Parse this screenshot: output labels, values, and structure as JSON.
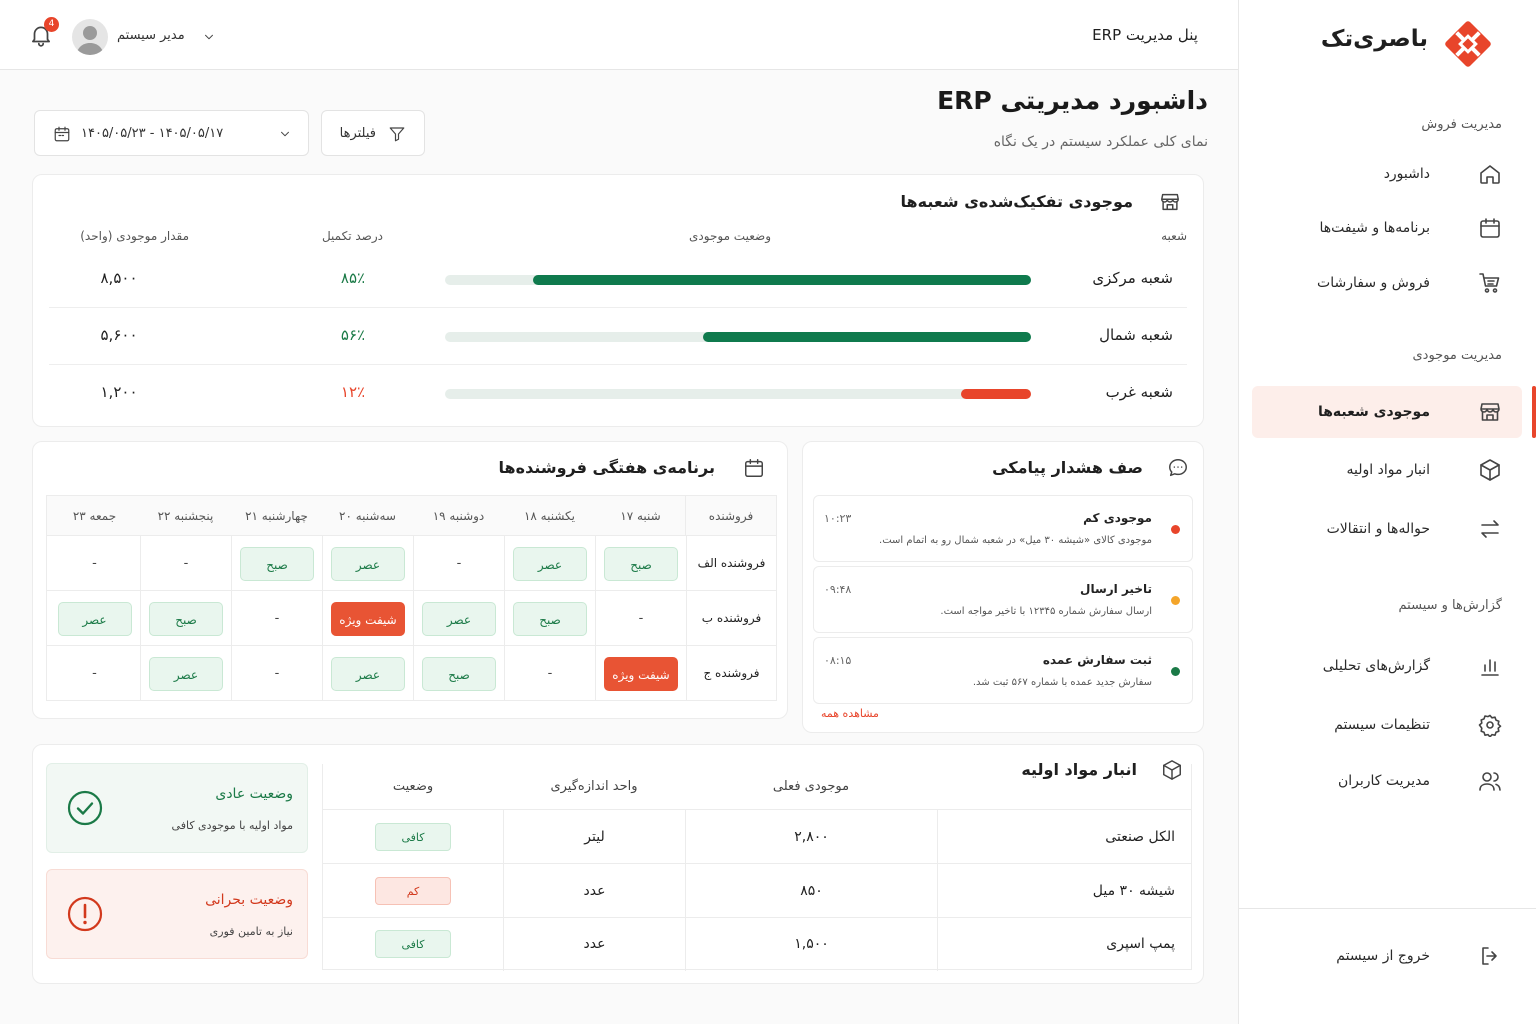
{
  "colors": {
    "accent": "#e8452b",
    "success": "#1b7a47",
    "bar_green": "#0f7a4d",
    "bar_red": "#e8452b",
    "warning": "#f4a52a",
    "track": "#e6eeea"
  },
  "brand": {
    "name": "باصری‌تک"
  },
  "sidebar": {
    "sections": [
      {
        "title": "مدیریت فروش",
        "items": [
          {
            "label": "داشبورد",
            "icon": "home-icon"
          },
          {
            "label": "برنامه‌ها و شیفت‌ها",
            "icon": "calendar-icon"
          },
          {
            "label": "فروش و سفارشات",
            "icon": "cart-icon"
          }
        ]
      },
      {
        "title": "مدیریت موجودی",
        "items": [
          {
            "label": "موجودی شعبه‌ها",
            "icon": "store-icon",
            "active": true
          },
          {
            "label": "انبار مواد اولیه",
            "icon": "box-icon"
          },
          {
            "label": "حواله‌ها و انتقالات",
            "icon": "transfer-icon"
          }
        ]
      },
      {
        "title": "گزارش‌ها و سیستم",
        "items": [
          {
            "label": "گزارش‌های تحلیلی",
            "icon": "bar-chart-icon"
          },
          {
            "label": "تنظیمات سیستم",
            "icon": "gear-icon"
          },
          {
            "label": "مدیریت کاربران",
            "icon": "users-icon"
          }
        ]
      }
    ],
    "logout": "خروج از سیستم"
  },
  "header": {
    "panel_title": "پنل مدیریت ERP",
    "user_name": "مدیر سیستم",
    "notification_count": "4"
  },
  "page": {
    "title": "داشبورد مدیریتی ERP",
    "subtitle": "نمای کلی عملکرد سیستم در یک نگاه",
    "filters_label": "فیلترها",
    "date_range": "۱۴۰۵/۰۵/۱۷ - ۱۴۰۵/۰۵/۲۳"
  },
  "inventory": {
    "title": "موجودی تفکیک‌شده‌ی شعبه‌ها",
    "columns": {
      "branch": "شعبه",
      "status": "وضعیت موجودی",
      "percent": "درصد تکمیل",
      "amount": "مقدار موجودی (واحد)"
    },
    "rows": [
      {
        "branch": "شعبه مرکزی",
        "fill": 0.85,
        "percent": "۸۵٪",
        "amount": "۸,۵۰۰",
        "level": "good"
      },
      {
        "branch": "شعبه شمال",
        "fill": 0.56,
        "percent": "۵۶٪",
        "amount": "۵,۶۰۰",
        "level": "good"
      },
      {
        "branch": "شعبه غرب",
        "fill": 0.12,
        "percent": "۱۲٪",
        "amount": "۱,۲۰۰",
        "level": "low"
      }
    ]
  },
  "alerts": {
    "title": "صف هشدار پیامکی",
    "items": [
      {
        "title": "موجودی کم",
        "message": "موجودی کالای «شیشه ۳۰ میل» در شعبه شمال رو به اتمام است.",
        "time": "۱۰:۲۳",
        "dot": "#e8452b"
      },
      {
        "title": "تاخیر ارسال",
        "message": "ارسال سفارش شماره ۱۲۳۴۵ با تاخیر مواجه است.",
        "time": "۰۹:۴۸",
        "dot": "#f4a52a"
      },
      {
        "title": "ثبت سفارش عمده",
        "message": "سفارش جدید عمده با شماره ۵۶۷ ثبت شد.",
        "time": "۰۸:۱۵",
        "dot": "#1b7a47"
      }
    ],
    "view_all": "مشاهده همه"
  },
  "schedule": {
    "title": "برنامه‌ی هفتگی فروشنده‌ها",
    "columns": [
      "فروشنده",
      "شنبه ۱۷",
      "یکشنبه ۱۸",
      "دوشنبه ۱۹",
      "سه‌شنبه ۲۰",
      "چهارشنبه ۲۱",
      "پنجشنبه ۲۲",
      "جمعه ۲۳"
    ],
    "rows": [
      {
        "name": "فروشنده الف",
        "cells": [
          {
            "t": "صبح",
            "k": "g"
          },
          {
            "t": "عصر",
            "k": "g"
          },
          {
            "t": "-",
            "k": "n"
          },
          {
            "t": "عصر",
            "k": "g"
          },
          {
            "t": "صبح",
            "k": "g"
          },
          {
            "t": "-",
            "k": "n"
          },
          {
            "t": "-",
            "k": "n"
          }
        ]
      },
      {
        "name": "فروشنده ب",
        "cells": [
          {
            "t": "-",
            "k": "n"
          },
          {
            "t": "صبح",
            "k": "g"
          },
          {
            "t": "عصر",
            "k": "g"
          },
          {
            "t": "شیفت ویژه",
            "k": "o"
          },
          {
            "t": "-",
            "k": "n"
          },
          {
            "t": "صبح",
            "k": "g"
          },
          {
            "t": "عصر",
            "k": "g"
          }
        ]
      },
      {
        "name": "فروشنده ج",
        "cells": [
          {
            "t": "شیفت ویژه",
            "k": "o"
          },
          {
            "t": "-",
            "k": "n"
          },
          {
            "t": "صبح",
            "k": "g"
          },
          {
            "t": "عصر",
            "k": "g"
          },
          {
            "t": "-",
            "k": "n"
          },
          {
            "t": "عصر",
            "k": "g"
          },
          {
            "t": "-",
            "k": "n"
          }
        ]
      }
    ]
  },
  "raw_materials": {
    "title": "انبار مواد اولیه",
    "columns": {
      "name": "",
      "stock": "موجودی فعلی",
      "unit": "واحد اندازه‌گیری",
      "status": "وضعیت"
    },
    "rows": [
      {
        "name": "الکل صنعتی",
        "stock": "۲,۸۰۰",
        "unit": "لیتر",
        "status": "کافی",
        "k": "g"
      },
      {
        "name": "شیشه ۳۰ میل",
        "stock": "۸۵۰",
        "unit": "عدد",
        "status": "کم",
        "k": "r"
      },
      {
        "name": "پمپ اسپری",
        "stock": "۱,۵۰۰",
        "unit": "عدد",
        "status": "کافی",
        "k": "g"
      }
    ],
    "status_cards": [
      {
        "title": "وضعیت عادی",
        "desc": "مواد اولیه با موجودی کافی",
        "kind": "normal"
      },
      {
        "title": "وضعیت بحرانی",
        "desc": "نیاز به تامین فوری",
        "kind": "critical"
      }
    ]
  }
}
